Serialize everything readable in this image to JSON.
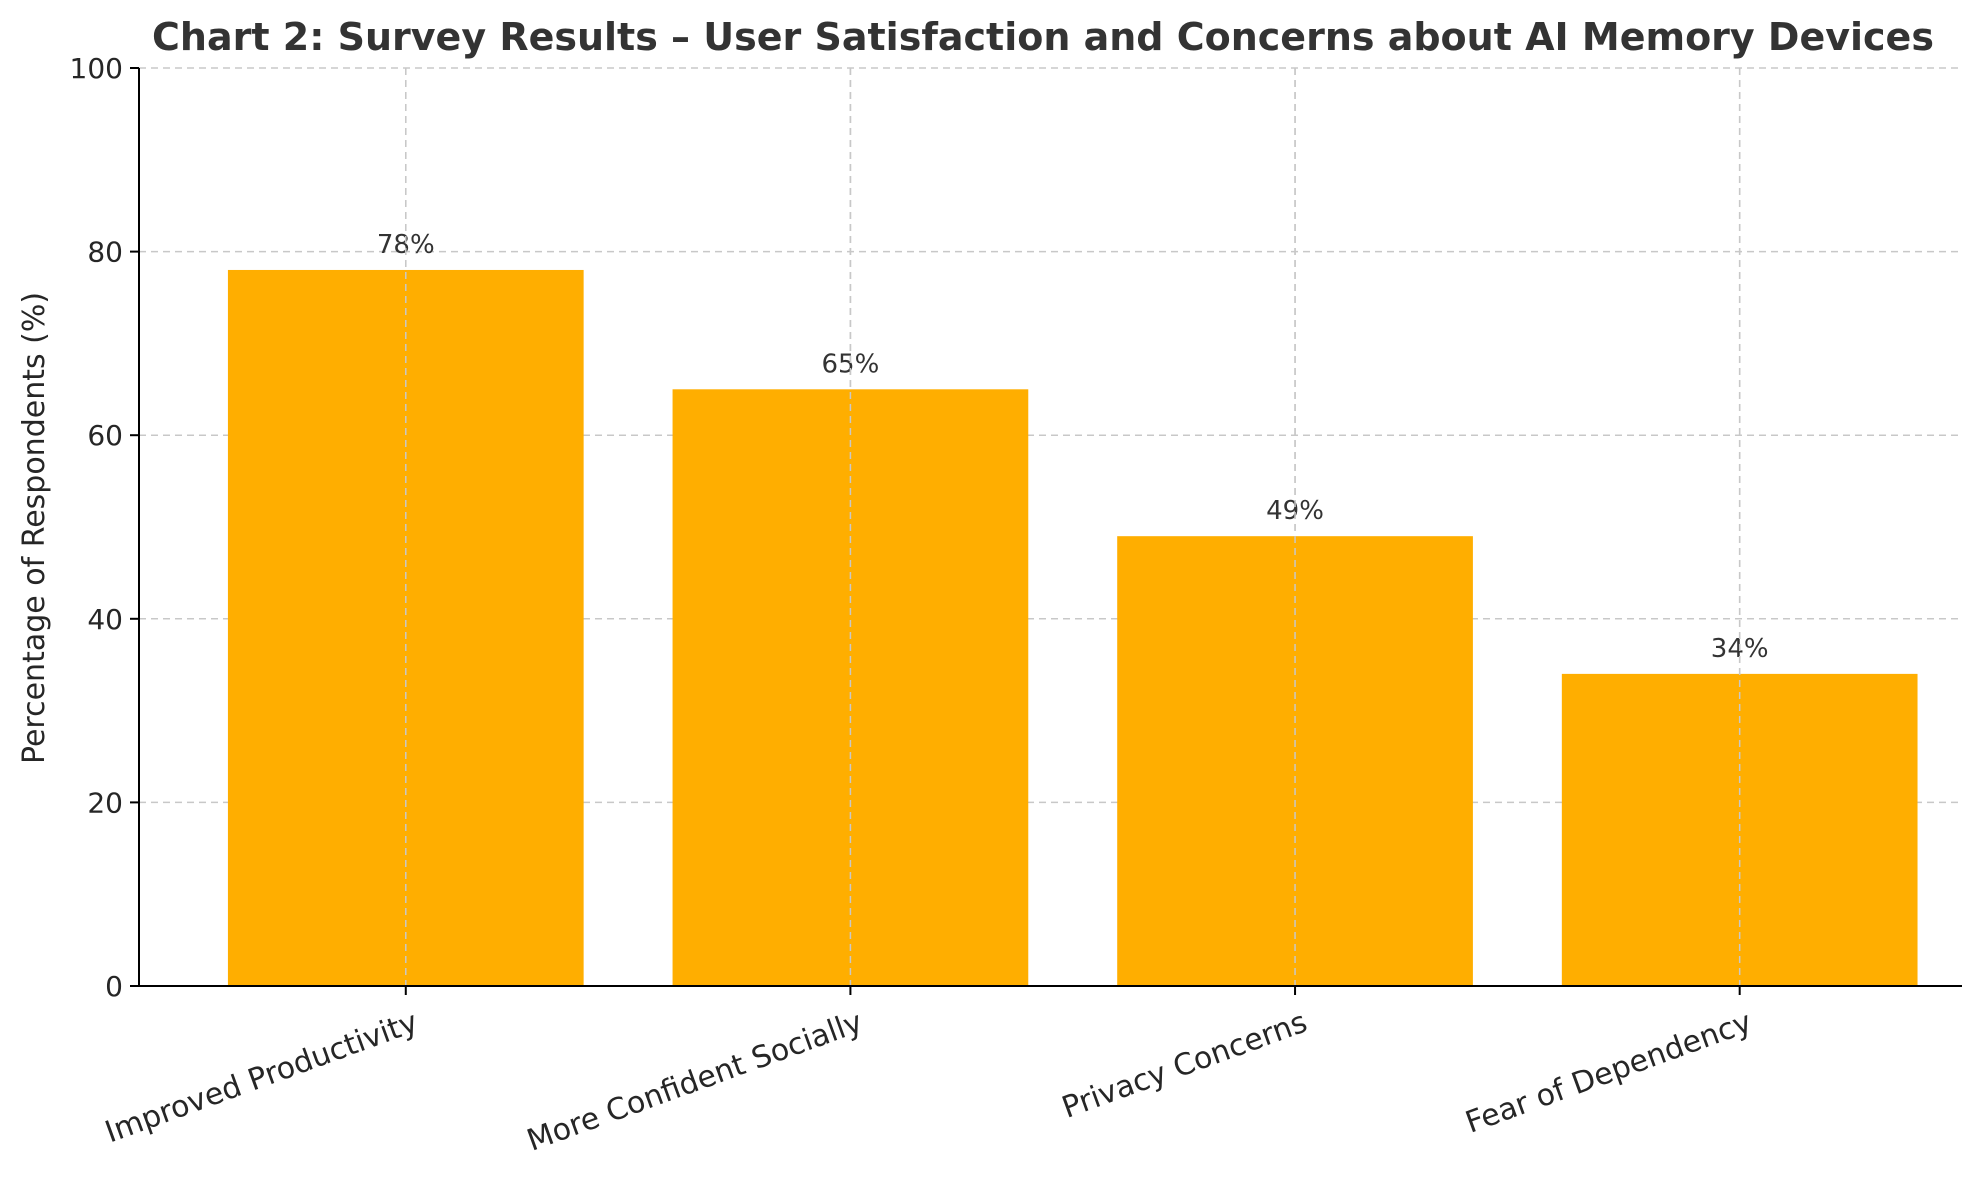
{
  "chart_data": {
    "type": "bar",
    "title": "Chart 2: Survey Results – User Satisfaction and Concerns about AI Memory Devices",
    "ylabel": "Percentage of Respondents (%)",
    "xlabel": "",
    "categories": [
      "Improved Productivity",
      "More Confident Socially",
      "Privacy Concerns",
      "Fear of Dependency"
    ],
    "values": [
      78,
      65,
      49,
      34
    ],
    "data_labels": [
      "78%",
      "65%",
      "49%",
      "34%"
    ],
    "ylim": [
      0,
      100
    ],
    "yticks": [
      0,
      20,
      40,
      60,
      80,
      100
    ],
    "ytick_labels": [
      "0",
      "20",
      "40",
      "60",
      "80",
      "100"
    ],
    "grid": true,
    "bar_color": "#FFAE00",
    "x_label_rotation_deg": -20
  }
}
